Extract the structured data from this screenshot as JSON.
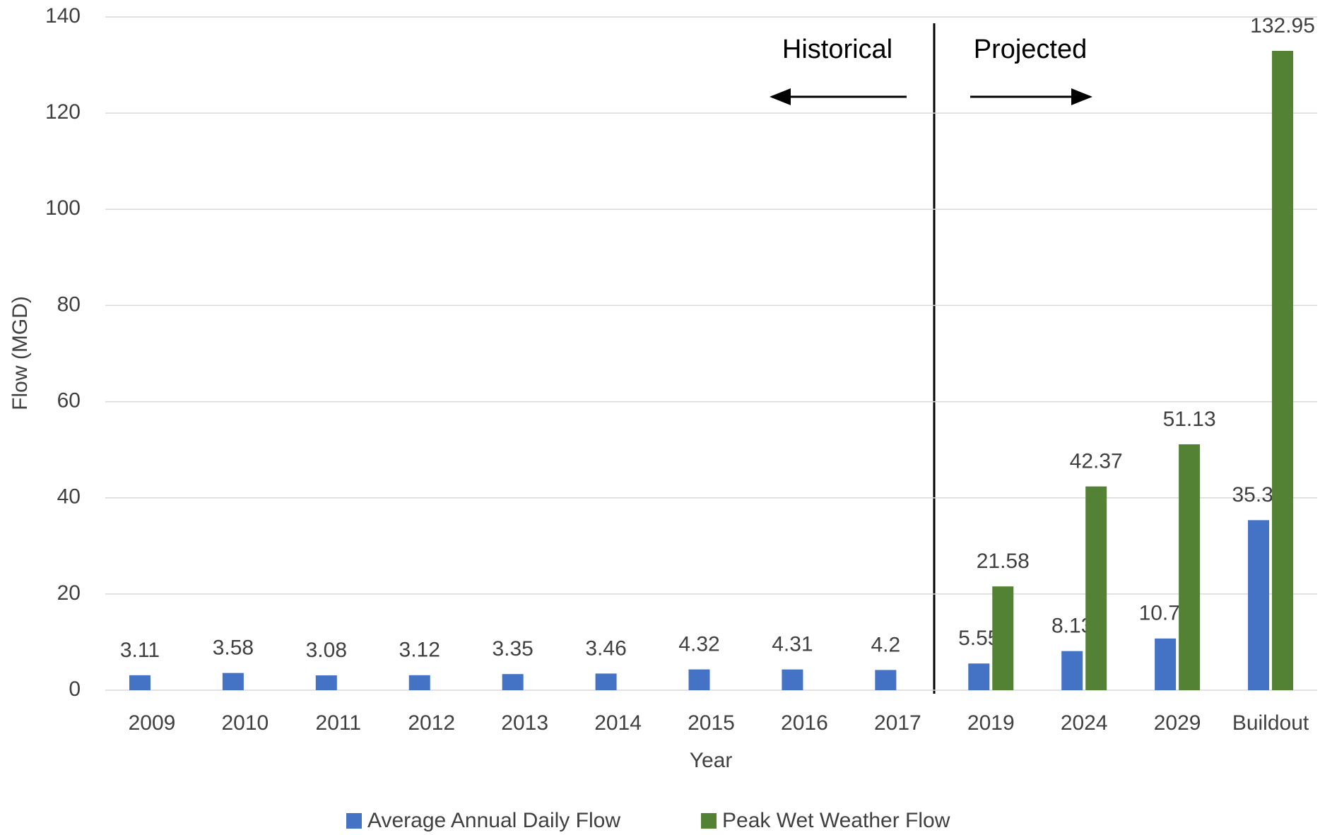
{
  "chart_data": {
    "type": "bar",
    "categories": [
      "2009",
      "2010",
      "2011",
      "2012",
      "2013",
      "2014",
      "2015",
      "2016",
      "2017",
      "2019",
      "2024",
      "2029",
      "Buildout"
    ],
    "series": [
      {
        "name": "Average Annual Daily Flow",
        "color": "#4472c4",
        "values": [
          3.11,
          3.58,
          3.08,
          3.12,
          3.35,
          3.46,
          4.32,
          4.31,
          4.2,
          5.55,
          8.13,
          10.75,
          35.36
        ]
      },
      {
        "name": "Peak Wet Weather Flow",
        "color": "#548235",
        "values": [
          null,
          null,
          null,
          null,
          null,
          null,
          null,
          null,
          null,
          21.58,
          42.37,
          51.13,
          132.95
        ]
      }
    ],
    "x_label": "Year",
    "y_label": "Flow (MGD)",
    "annotations": [
      "Historical",
      "Projected"
    ],
    "ylim": [
      0,
      140
    ],
    "yticks": [
      0,
      20,
      40,
      60,
      80,
      100,
      120,
      140
    ],
    "grid": true,
    "legend": "bottom"
  }
}
